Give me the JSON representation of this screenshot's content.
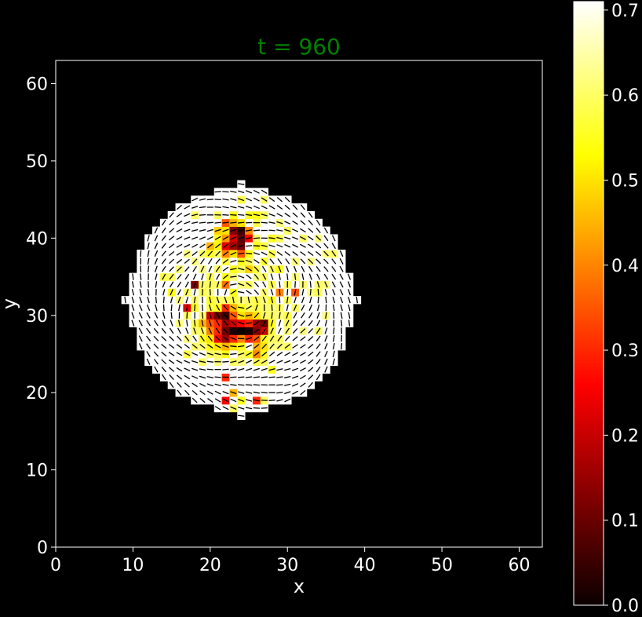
{
  "chart_data": {
    "type": "heatmap",
    "title": "t = 960",
    "title_color": "#008000",
    "xlabel": "x",
    "ylabel": "y",
    "xlim": [
      0,
      63
    ],
    "ylim": [
      0,
      63
    ],
    "xticks": [
      0,
      10,
      20,
      30,
      40,
      50,
      60
    ],
    "yticks": [
      0,
      10,
      20,
      30,
      40,
      50,
      60
    ],
    "colormap": "hot",
    "colorbar": {
      "vmin": 0.0,
      "vmax": 0.71,
      "ticks": [
        0.0,
        0.1,
        0.2,
        0.3,
        0.4,
        0.5,
        0.6,
        0.7
      ],
      "tick_labels": [
        "0.0",
        "0.1",
        "0.2",
        "0.3",
        "0.4",
        "0.5",
        "0.6",
        "0.7"
      ]
    },
    "domain": {
      "shape": "disk",
      "center": [
        24,
        32
      ],
      "radius": 14.5,
      "background_value": 0.71
    },
    "grid_note": "one cell per integer lattice site; director field drawn as short line segments",
    "cells": [
      [
        24,
        41,
        0.05
      ],
      [
        23,
        41,
        0.12
      ],
      [
        24,
        40,
        0.08
      ],
      [
        23,
        40,
        0.2
      ],
      [
        22,
        39,
        0.22
      ],
      [
        23,
        39,
        0.15
      ],
      [
        24,
        39,
        0.1
      ],
      [
        25,
        40,
        0.25
      ],
      [
        22,
        40,
        0.42
      ],
      [
        23,
        42,
        0.45
      ],
      [
        22,
        42,
        0.35
      ],
      [
        25,
        41,
        0.4
      ],
      [
        22,
        41,
        0.5
      ],
      [
        21,
        41,
        0.48
      ],
      [
        24,
        38,
        0.35
      ],
      [
        23,
        38,
        0.5
      ],
      [
        22,
        38,
        0.4
      ],
      [
        25,
        38,
        0.55
      ],
      [
        21,
        39,
        0.52
      ],
      [
        20,
        39,
        0.45
      ],
      [
        26,
        39,
        0.55
      ],
      [
        24,
        42,
        0.5
      ],
      [
        26,
        40,
        0.6
      ],
      [
        27,
        39,
        0.58
      ],
      [
        21,
        40,
        0.55
      ],
      [
        23,
        28,
        0.02
      ],
      [
        24,
        28,
        0.0
      ],
      [
        25,
        28,
        0.02
      ],
      [
        22,
        28,
        0.1
      ],
      [
        26,
        28,
        0.12
      ],
      [
        23,
        29,
        0.2
      ],
      [
        22,
        29,
        0.15
      ],
      [
        24,
        29,
        0.25
      ],
      [
        22,
        30,
        0.05
      ],
      [
        21,
        30,
        0.1
      ],
      [
        20,
        30,
        0.2
      ],
      [
        21,
        29,
        0.3
      ],
      [
        25,
        29,
        0.3
      ],
      [
        26,
        29,
        0.15
      ],
      [
        27,
        29,
        0.1
      ],
      [
        27,
        28,
        0.2
      ],
      [
        22,
        27,
        0.15
      ],
      [
        21,
        27,
        0.25
      ],
      [
        22,
        31,
        0.3
      ],
      [
        23,
        31,
        0.45
      ],
      [
        23,
        30,
        0.35
      ],
      [
        24,
        30,
        0.5
      ],
      [
        20,
        29,
        0.35
      ],
      [
        21,
        28,
        0.3
      ],
      [
        20,
        28,
        0.4
      ],
      [
        19,
        29,
        0.45
      ],
      [
        25,
        30,
        0.45
      ],
      [
        26,
        30,
        0.5
      ],
      [
        22,
        26,
        0.45
      ],
      [
        23,
        26,
        0.5
      ],
      [
        24,
        26,
        0.55
      ],
      [
        26,
        26,
        0.45
      ],
      [
        27,
        26,
        0.5
      ],
      [
        26,
        25,
        0.4
      ],
      [
        25,
        25,
        0.55
      ],
      [
        21,
        26,
        0.5
      ],
      [
        20,
        27,
        0.5
      ],
      [
        19,
        27,
        0.55
      ],
      [
        18,
        28,
        0.6
      ],
      [
        27,
        27,
        0.55
      ],
      [
        28,
        27,
        0.6
      ],
      [
        26,
        27,
        0.35
      ],
      [
        25,
        27,
        0.3
      ],
      [
        24,
        27,
        0.4
      ],
      [
        23,
        27,
        0.3
      ],
      [
        20,
        26,
        0.55
      ],
      [
        28,
        29,
        0.55
      ],
      [
        28,
        28,
        0.58
      ],
      [
        19,
        30,
        0.6
      ],
      [
        21,
        31,
        0.55
      ],
      [
        24,
        31,
        0.55
      ],
      [
        26,
        31,
        0.58
      ],
      [
        27,
        30,
        0.6
      ],
      [
        17,
        31,
        0.22
      ],
      [
        18,
        34,
        0.12
      ],
      [
        22,
        34,
        0.38
      ],
      [
        25,
        36,
        0.48
      ],
      [
        29,
        33,
        0.4
      ],
      [
        31,
        33,
        0.35
      ],
      [
        22,
        35,
        0.55
      ],
      [
        23,
        33,
        0.55
      ],
      [
        22,
        22,
        0.3
      ],
      [
        22,
        19,
        0.25
      ],
      [
        23,
        20,
        0.45
      ],
      [
        26,
        19,
        0.3
      ],
      [
        24,
        19,
        0.55
      ],
      [
        27,
        19,
        0.6
      ],
      [
        23,
        18,
        0.6
      ],
      [
        28,
        23,
        0.55
      ],
      [
        24,
        25,
        0.6
      ],
      [
        20,
        25,
        0.6
      ],
      [
        17,
        25,
        0.58
      ],
      [
        24,
        45,
        0.58
      ],
      [
        25,
        43,
        0.55
      ],
      [
        27,
        45,
        0.6
      ],
      [
        23,
        43,
        0.55
      ],
      [
        27,
        43,
        0.6
      ],
      [
        26,
        43,
        0.55
      ],
      [
        18,
        43,
        0.6
      ],
      [
        16,
        36,
        0.62
      ],
      [
        14,
        35,
        0.58
      ],
      [
        15,
        35,
        0.6
      ],
      [
        15,
        33,
        0.55
      ],
      [
        17,
        33,
        0.6
      ],
      [
        18,
        32,
        0.6
      ],
      [
        19,
        33,
        0.58
      ],
      [
        20,
        32,
        0.55
      ],
      [
        20,
        31,
        0.58
      ],
      [
        21,
        32,
        0.6
      ],
      [
        16,
        32,
        0.62
      ],
      [
        18,
        31,
        0.55
      ],
      [
        17,
        30,
        0.6
      ],
      [
        18,
        29,
        0.58
      ],
      [
        16,
        29,
        0.62
      ],
      [
        19,
        28,
        0.6
      ],
      [
        17,
        27,
        0.62
      ],
      [
        18,
        26,
        0.6
      ],
      [
        21,
        25,
        0.6
      ],
      [
        22,
        25,
        0.55
      ],
      [
        19,
        34,
        0.6
      ],
      [
        20,
        35,
        0.58
      ],
      [
        21,
        36,
        0.6
      ],
      [
        20,
        38,
        0.55
      ],
      [
        19,
        36,
        0.62
      ],
      [
        19,
        38,
        0.6
      ],
      [
        18,
        37,
        0.62
      ],
      [
        20,
        33,
        0.62
      ],
      [
        28,
        40,
        0.55
      ],
      [
        29,
        40,
        0.6
      ],
      [
        28,
        38,
        0.58
      ],
      [
        27,
        37,
        0.55
      ],
      [
        28,
        36,
        0.6
      ],
      [
        29,
        36,
        0.55
      ],
      [
        27,
        35,
        0.6
      ],
      [
        28,
        34,
        0.58
      ],
      [
        30,
        34,
        0.6
      ],
      [
        30,
        32,
        0.6
      ],
      [
        31,
        31,
        0.6
      ],
      [
        30,
        30,
        0.58
      ],
      [
        29,
        30,
        0.62
      ],
      [
        29,
        31,
        0.6
      ],
      [
        28,
        32,
        0.55
      ],
      [
        30,
        29,
        0.6
      ],
      [
        30,
        28,
        0.62
      ],
      [
        29,
        27,
        0.6
      ],
      [
        29,
        26,
        0.62
      ],
      [
        30,
        26,
        0.6
      ],
      [
        28,
        26,
        0.62
      ],
      [
        27,
        25,
        0.55
      ],
      [
        27,
        24,
        0.6
      ],
      [
        26,
        24,
        0.58
      ],
      [
        24,
        24,
        0.62
      ],
      [
        23,
        24,
        0.6
      ],
      [
        21,
        24,
        0.62
      ],
      [
        19,
        24,
        0.6
      ],
      [
        19,
        26,
        0.62
      ],
      [
        31,
        35,
        0.62
      ],
      [
        32,
        34,
        0.6
      ],
      [
        33,
        33,
        0.62
      ],
      [
        34,
        34,
        0.6
      ],
      [
        35,
        34,
        0.62
      ],
      [
        34,
        33,
        0.58
      ],
      [
        35,
        30,
        0.62
      ],
      [
        34,
        28,
        0.6
      ],
      [
        32,
        28,
        0.62
      ],
      [
        33,
        37,
        0.62
      ],
      [
        32,
        40,
        0.6
      ],
      [
        34,
        40,
        0.62
      ],
      [
        35,
        38,
        0.62
      ],
      [
        36,
        38,
        0.6
      ],
      [
        29,
        42,
        0.62
      ],
      [
        30,
        41,
        0.6
      ],
      [
        31,
        37,
        0.62
      ],
      [
        26,
        42,
        0.58
      ],
      [
        21,
        43,
        0.6
      ],
      [
        17,
        38,
        0.62
      ],
      [
        25,
        37,
        0.6
      ],
      [
        26,
        36,
        0.58
      ],
      [
        24,
        36,
        0.6
      ],
      [
        23,
        36,
        0.55
      ],
      [
        22,
        37,
        0.58
      ],
      [
        21,
        38,
        0.6
      ],
      [
        24,
        37,
        0.55
      ],
      [
        26,
        35,
        0.62
      ],
      [
        25,
        34,
        0.6
      ],
      [
        24,
        34,
        0.62
      ],
      [
        21,
        34,
        0.6
      ],
      [
        23,
        35,
        0.62
      ],
      [
        27,
        33,
        0.6
      ],
      [
        26,
        32,
        0.58
      ],
      [
        25,
        32,
        0.6
      ],
      [
        24,
        32,
        0.62
      ],
      [
        23,
        32,
        0.58
      ],
      [
        22,
        32,
        0.6
      ],
      [
        27,
        31,
        0.6
      ],
      [
        28,
        31,
        0.62
      ],
      [
        28,
        30,
        0.6
      ],
      [
        25,
        31,
        0.6
      ],
      [
        20,
        34,
        0.6
      ],
      [
        27,
        32,
        0.62
      ]
    ]
  }
}
